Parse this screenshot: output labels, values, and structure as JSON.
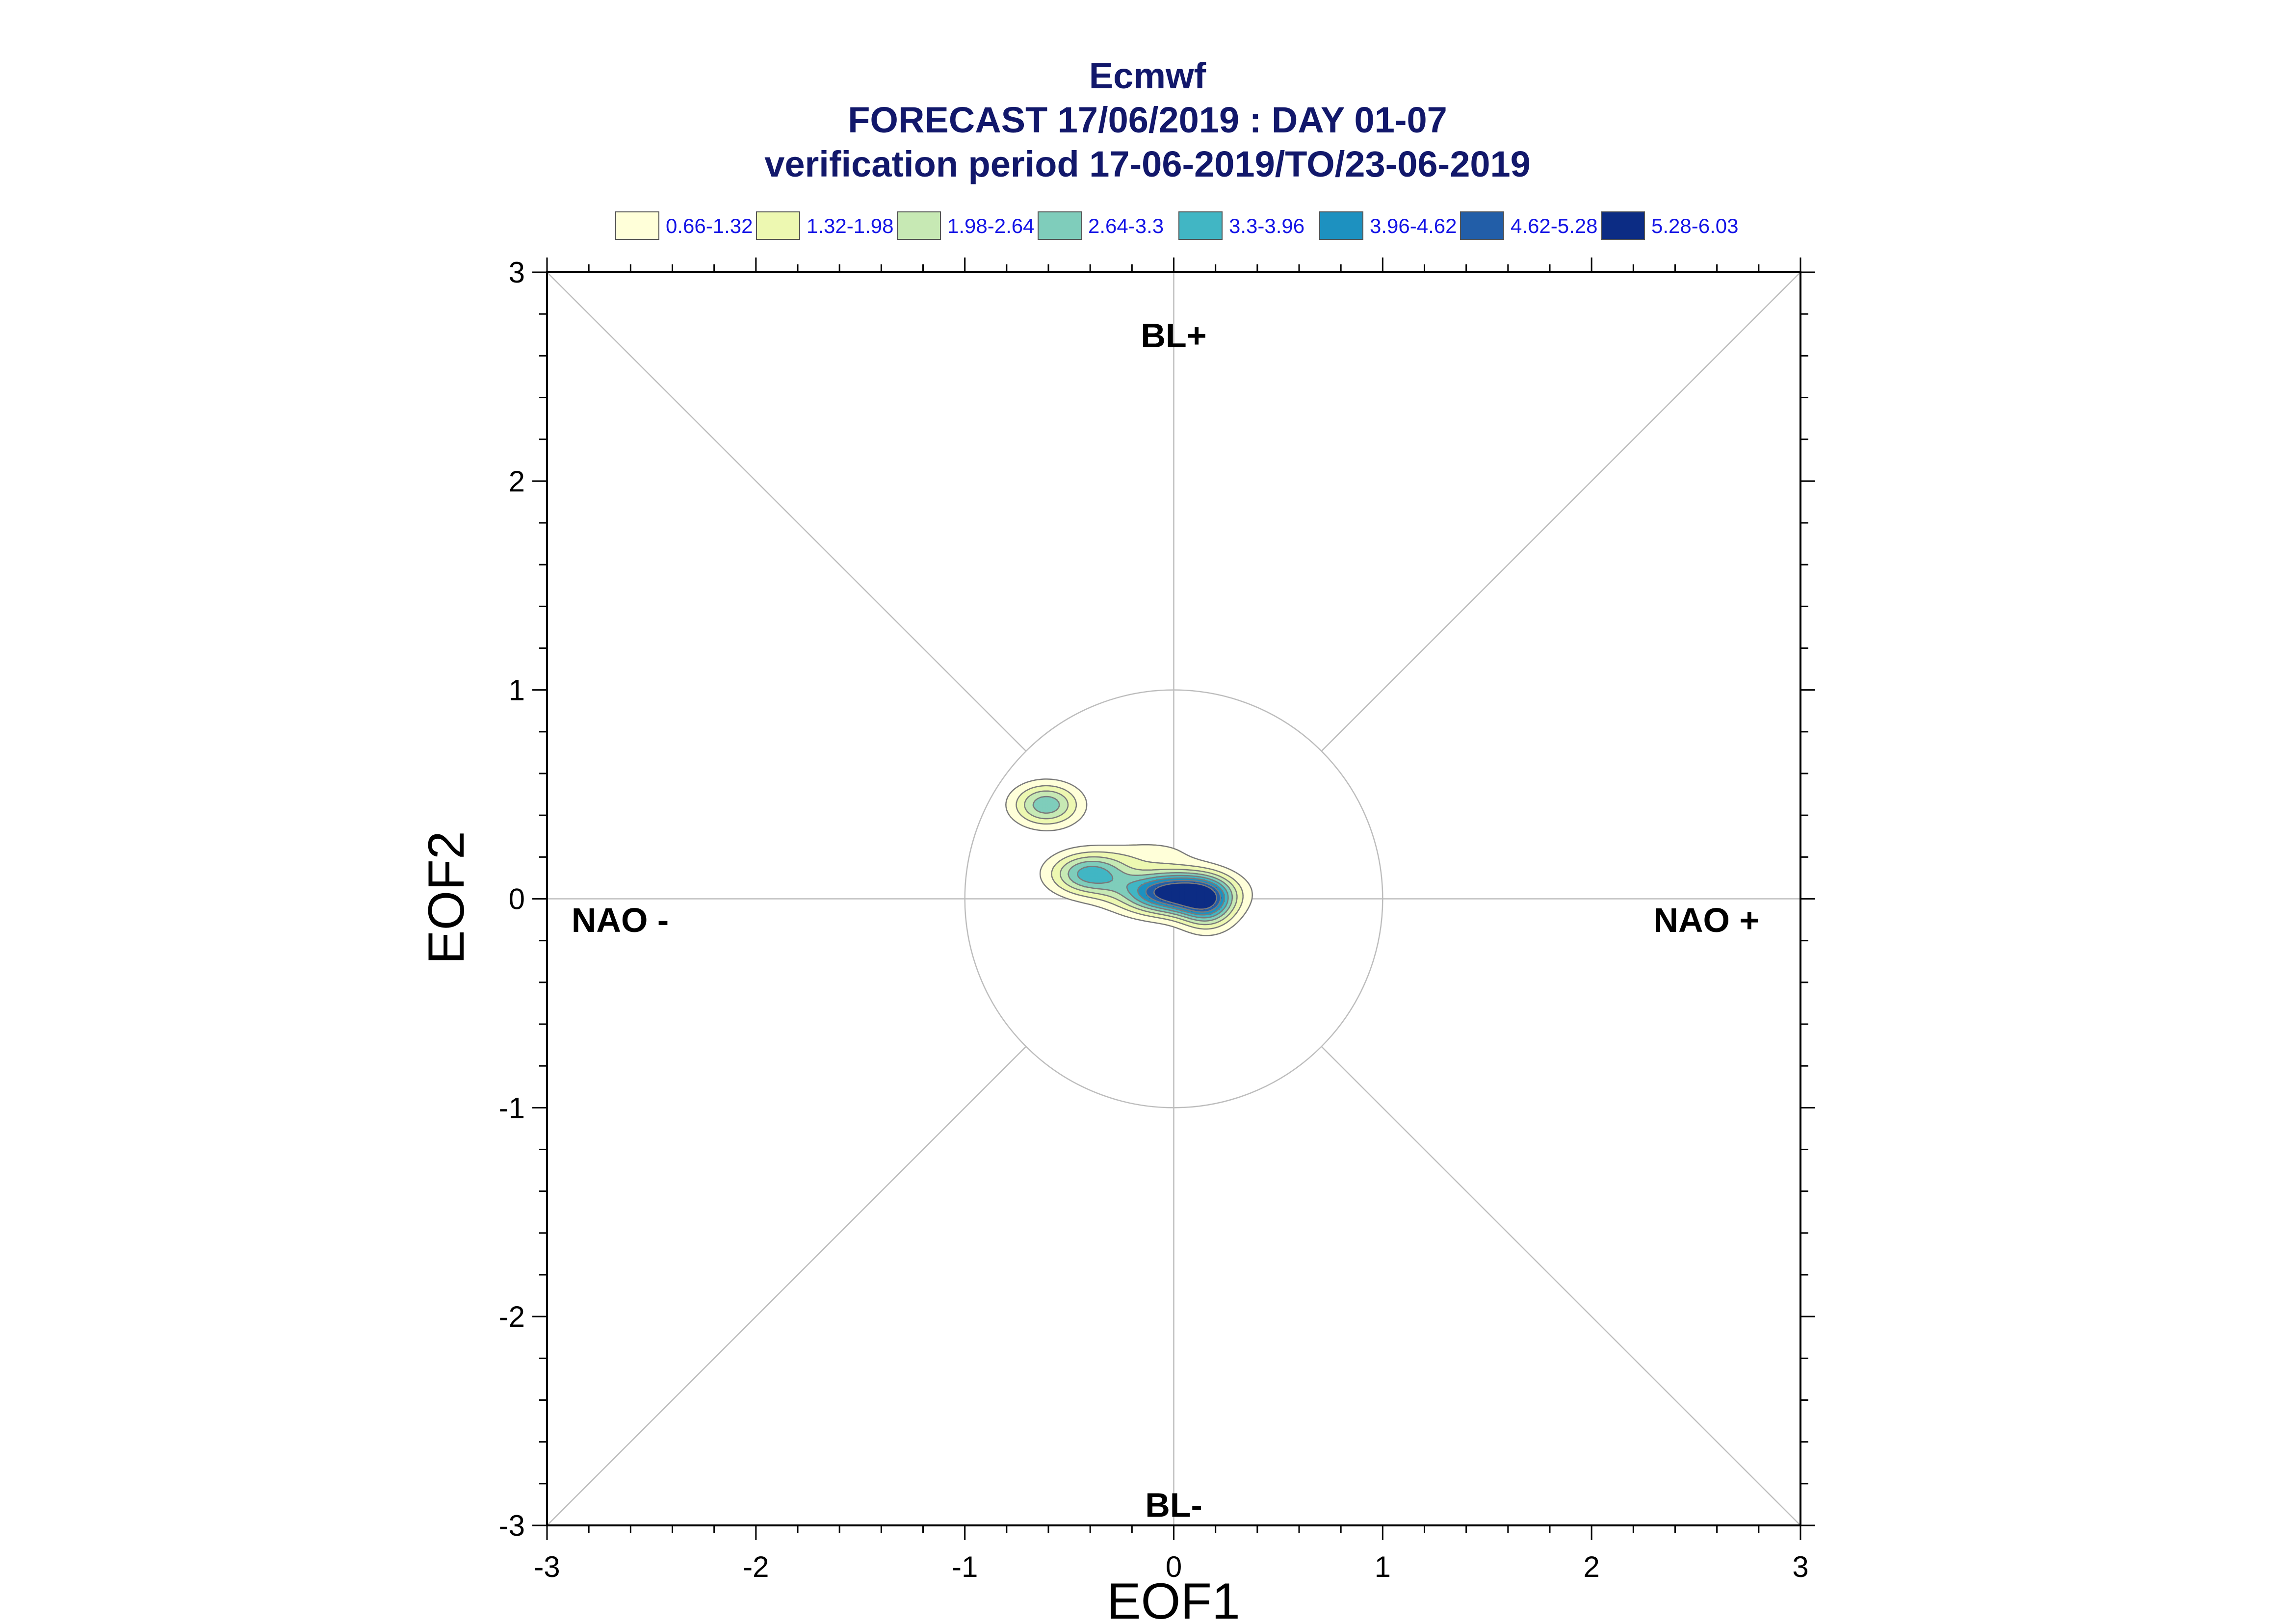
{
  "chart_data": {
    "type": "contour",
    "title": "Ecmwf",
    "subtitle": "FORECAST 17/06/2019 : DAY 01-07",
    "subtitle2": "verification period 17-06-2019/TO/23-06-2019",
    "xlabel": "EOF1",
    "ylabel": "EOF2",
    "xlim": [
      -3,
      3
    ],
    "ylim": [
      -3,
      3
    ],
    "xticks": [
      -3,
      -2,
      -1,
      0,
      1,
      2,
      3
    ],
    "yticks": [
      -3,
      -2,
      -1,
      0,
      1,
      2,
      3
    ],
    "xtick_labels": [
      "-3",
      "-2",
      "-1",
      "0",
      "1",
      "2",
      "3"
    ],
    "ytick_labels": [
      "-3",
      "-2",
      "-1",
      "0",
      "1",
      "2",
      "3"
    ],
    "reference_circle_radius": 1,
    "regime_labels": [
      {
        "text": "BL+",
        "x": 0,
        "y": 2.7
      },
      {
        "text": "BL-",
        "x": 0,
        "y": -2.9
      },
      {
        "text": "NAO -",
        "x": -2.65,
        "y": -0.1
      },
      {
        "text": "NAO +",
        "x": 2.55,
        "y": -0.1
      }
    ],
    "legend": {
      "placement": "top",
      "levels": [
        {
          "label": "0.66-1.32",
          "min": 0.66,
          "max": 1.32,
          "color": "#ffffd9"
        },
        {
          "label": "1.32-1.98",
          "min": 1.32,
          "max": 1.98,
          "color": "#edf8b1"
        },
        {
          "label": "1.98-2.64",
          "min": 1.98,
          "max": 2.64,
          "color": "#c7e9b4"
        },
        {
          "label": "2.64-3.3",
          "min": 2.64,
          "max": 3.3,
          "color": "#7fcdbb"
        },
        {
          "label": "3.3-3.96",
          "min": 3.3,
          "max": 3.96,
          "color": "#41b6c4"
        },
        {
          "label": "3.96-4.62",
          "min": 3.96,
          "max": 4.62,
          "color": "#1d91c0"
        },
        {
          "label": "4.62-5.28",
          "min": 4.62,
          "max": 5.28,
          "color": "#225ea8"
        },
        {
          "label": "5.28-6.03",
          "min": 5.28,
          "max": 6.03,
          "color": "#0c2c84"
        }
      ]
    },
    "density_blobs": [
      {
        "x": -0.61,
        "y": 0.45,
        "sx": 0.11,
        "sy": 0.07,
        "peak": 3.1
      },
      {
        "x": -0.4,
        "y": 0.12,
        "sx": 0.13,
        "sy": 0.07,
        "peak": 3.6
      },
      {
        "x": 0.0,
        "y": 0.03,
        "sx": 0.17,
        "sy": 0.07,
        "peak": 6.0
      },
      {
        "x": 0.16,
        "y": -0.03,
        "sx": 0.09,
        "sy": 0.08,
        "peak": 3.2
      },
      {
        "x": -0.1,
        "y": 0.22,
        "sx": 0.15,
        "sy": 0.05,
        "peak": 0.8
      }
    ]
  }
}
